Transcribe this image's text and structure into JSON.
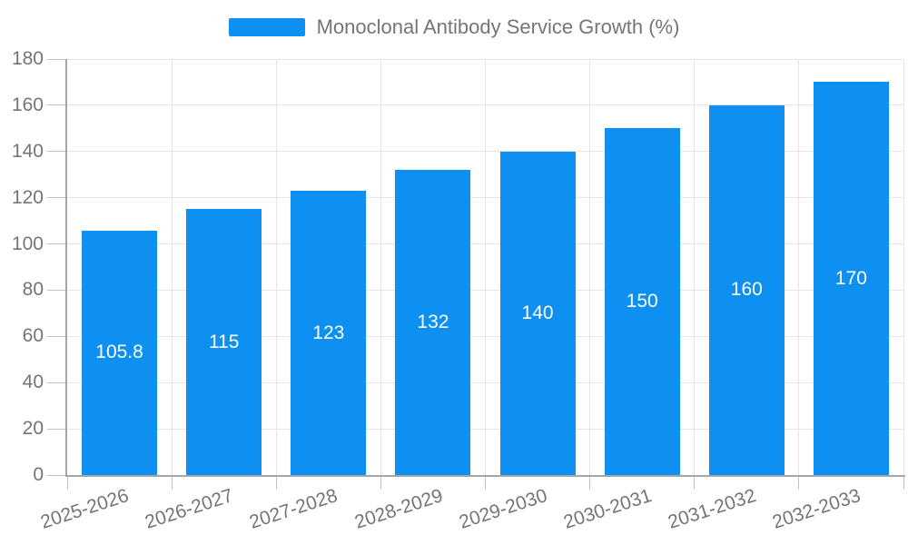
{
  "chart_data": {
    "type": "bar",
    "title": "",
    "legend": "Monoclonal Antibody Service Growth (%)",
    "legend_position": "top",
    "categories": [
      "2025-2026",
      "2026-2027",
      "2027-2028",
      "2028-2029",
      "2029-2030",
      "2030-2031",
      "2031-2032",
      "2032-2033"
    ],
    "values": [
      105.8,
      115,
      123,
      132,
      140,
      150,
      160,
      170
    ],
    "bar_labels": [
      "105.8",
      "115",
      "123",
      "132",
      "140",
      "150",
      "160",
      "170"
    ],
    "xlabel": "",
    "ylabel": "",
    "ylim": [
      0,
      180
    ],
    "ytick_step": 20,
    "yticks": [
      "0",
      "20",
      "40",
      "60",
      "80",
      "100",
      "120",
      "140",
      "160",
      "180"
    ],
    "grid": true,
    "colors": {
      "bar": "#0e90f2",
      "bar_label_text": "#ffffff",
      "axis_line": "#a6a6a6",
      "tick": "#c2c2c2",
      "gridline": "#e5e5e5",
      "label_text": "#757575"
    }
  }
}
